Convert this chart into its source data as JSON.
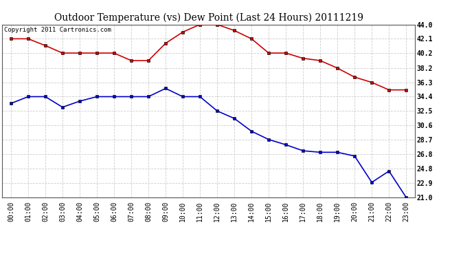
{
  "title": "Outdoor Temperature (vs) Dew Point (Last 24 Hours) 20111219",
  "copyright_text": "Copyright 2011 Cartronics.com",
  "x_labels": [
    "00:00",
    "01:00",
    "02:00",
    "03:00",
    "04:00",
    "05:00",
    "06:00",
    "07:00",
    "08:00",
    "09:00",
    "10:00",
    "11:00",
    "12:00",
    "13:00",
    "14:00",
    "15:00",
    "16:00",
    "17:00",
    "18:00",
    "19:00",
    "20:00",
    "21:00",
    "22:00",
    "23:00"
  ],
  "y_ticks": [
    21.0,
    22.9,
    24.8,
    26.8,
    28.7,
    30.6,
    32.5,
    34.4,
    36.3,
    38.2,
    40.2,
    42.1,
    44.0
  ],
  "ylim_min": 21.0,
  "ylim_max": 44.0,
  "temp_data": [
    42.1,
    42.1,
    41.2,
    40.2,
    40.2,
    40.2,
    40.2,
    39.2,
    39.2,
    41.5,
    43.0,
    44.0,
    44.0,
    43.2,
    42.1,
    40.2,
    40.2,
    39.5,
    39.2,
    38.2,
    37.0,
    36.3,
    35.3,
    35.3
  ],
  "dew_data": [
    33.5,
    34.4,
    34.4,
    33.0,
    33.8,
    34.4,
    34.4,
    34.4,
    34.4,
    35.5,
    34.4,
    34.4,
    32.5,
    31.5,
    29.8,
    28.7,
    28.0,
    27.2,
    27.0,
    27.0,
    26.5,
    23.0,
    24.5,
    21.0
  ],
  "temp_color": "#cc0000",
  "dew_color": "#0000cc",
  "bg_color": "#ffffff",
  "grid_color": "#cccccc",
  "grid_linestyle": "--",
  "title_fontsize": 10,
  "copyright_fontsize": 6.5,
  "marker_size": 3,
  "line_width": 1.2,
  "tick_fontsize": 7,
  "ytick_fontsize": 7
}
